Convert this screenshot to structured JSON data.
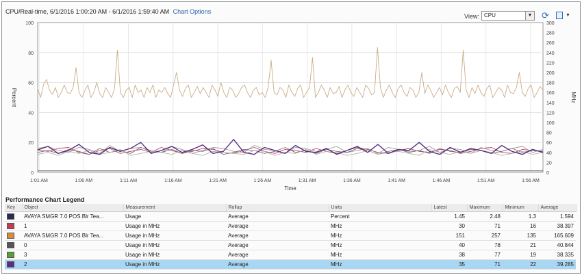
{
  "header": {
    "title": "CPU/Real-time, 6/1/2016 1:00:20 AM - 6/1/2016 1:59:40 AM",
    "chart_options_label": "Chart Options",
    "view_label": "View:",
    "view_selected": "CPU"
  },
  "chart_data": {
    "type": "line",
    "ylabel": "Percent",
    "y2label": "MHz",
    "xlabel": "Time",
    "y_ticks": [
      "0",
      "20",
      "40",
      "60",
      "80",
      "100"
    ],
    "y2_ticks": [
      "0",
      "20",
      "40",
      "60",
      "80",
      "100",
      "120",
      "140",
      "160",
      "180",
      "200",
      "220",
      "240",
      "260",
      "280",
      "300"
    ],
    "x_ticks": [
      "1:01 AM",
      "1:06 AM",
      "1:11 AM",
      "1:16 AM",
      "1:21 AM",
      "1:26 AM",
      "1:31 AM",
      "1:36 AM",
      "1:41 AM",
      "1:46 AM",
      "1:51 AM",
      "1:56 AM"
    ],
    "ylim": [
      0,
      100
    ],
    "y2lim": [
      0,
      300
    ],
    "series": [
      {
        "name": "Usage in MHz (AVAYA SMGR 7.0 POS Blr Tea...)",
        "color": "#c9ac86",
        "values": [
          168,
          150,
          176,
          186,
          165,
          156,
          170,
          150,
          160,
          175,
          160,
          158,
          170,
          210,
          160,
          150,
          164,
          175,
          150,
          160,
          180,
          158,
          150,
          170,
          160,
          150,
          167,
          245,
          160,
          150,
          165,
          170,
          150,
          175,
          160,
          165,
          150,
          170,
          160,
          175,
          150,
          165,
          160,
          170,
          158,
          150,
          175,
          200,
          165,
          152,
          168,
          175,
          150,
          160,
          172,
          158,
          170,
          160,
          150,
          175,
          165,
          152,
          180,
          160,
          150,
          170,
          165,
          150,
          158,
          170,
          175,
          160,
          150,
          165,
          170,
          155,
          160,
          150,
          170,
          225,
          160,
          155,
          170,
          165,
          150,
          175,
          160,
          152,
          168,
          175,
          150,
          160,
          170,
          230,
          150,
          160,
          175,
          165,
          150,
          170,
          158,
          160,
          172,
          150,
          165,
          175,
          160,
          152,
          170,
          160,
          150,
          175,
          168,
          155,
          160,
          250,
          170,
          150,
          165,
          175,
          160,
          150,
          168,
          175,
          160,
          152,
          170,
          165,
          150,
          160,
          200,
          158,
          175,
          165,
          150,
          160,
          170,
          155,
          175,
          160,
          150,
          168,
          172,
          160,
          245,
          165,
          150,
          170,
          158,
          175,
          160,
          152,
          168,
          175,
          150,
          160,
          170,
          165,
          150,
          175,
          160,
          158,
          170,
          200,
          160,
          152,
          168,
          175,
          150,
          160,
          172,
          165
        ]
      },
      {
        "name": "Usage in MHz (1)",
        "color": "#c23a56",
        "values": [
          45,
          42,
          48,
          50,
          40,
          36,
          44,
          48,
          38,
          42,
          46,
          40,
          50,
          44,
          38,
          42,
          48,
          46,
          40,
          38,
          44,
          50,
          42,
          38,
          46,
          44,
          40,
          48,
          42,
          38,
          44,
          50,
          46,
          40,
          38,
          44,
          48,
          42,
          40,
          46,
          44,
          38,
          42,
          48,
          50,
          40,
          38,
          46,
          44,
          42
        ]
      },
      {
        "name": "Usage in MHz (AVAYA SMGR 7.0 POS Blr Tea...)",
        "color": "#9a9a9a",
        "values": [
          48,
          52,
          44,
          40,
          50,
          46,
          38,
          54,
          42,
          48,
          50,
          44,
          40,
          52,
          46,
          38,
          44,
          50,
          48,
          42,
          40,
          54,
          46,
          44,
          38,
          50,
          48,
          42,
          46,
          52,
          40,
          44,
          48,
          38,
          50,
          46,
          42,
          44,
          52,
          40,
          48,
          46,
          38,
          50,
          44,
          42,
          48,
          52,
          40,
          46
        ]
      },
      {
        "name": "Usage in MHz (0)",
        "color": "#707070",
        "values": [
          40,
          44,
          38,
          46,
          42,
          36,
          48,
          40,
          44,
          38,
          50,
          42,
          40,
          46,
          38,
          44,
          42,
          48,
          36,
          40,
          46,
          44,
          38,
          42,
          50,
          40,
          44,
          38,
          46,
          42,
          40,
          48,
          44,
          36,
          42,
          46,
          40,
          44,
          38,
          48,
          42,
          40,
          46,
          44,
          38,
          42,
          48,
          40,
          44,
          42
        ]
      },
      {
        "name": "Usage in MHz (3)",
        "color": "#b0b0b0",
        "values": [
          36,
          40,
          34,
          42,
          38,
          44,
          36,
          40,
          46,
          34,
          38,
          42,
          40,
          36,
          44,
          38,
          34,
          42,
          40,
          38,
          36,
          44,
          42,
          34,
          40,
          38,
          46,
          36,
          42,
          40,
          34,
          38,
          44,
          36,
          40,
          42,
          38,
          34,
          46,
          40,
          36,
          42,
          38,
          44,
          40,
          34,
          38,
          42,
          36,
          40
        ]
      },
      {
        "name": "Usage in MHz (2)",
        "color": "#5a2d82",
        "values": [
          45,
          52,
          38,
          44,
          56,
          40,
          36,
          50,
          42,
          48,
          60,
          38,
          44,
          52,
          40,
          46,
          55,
          38,
          42,
          66,
          40,
          36,
          50,
          44,
          38,
          54,
          42,
          40,
          48,
          36,
          44,
          52,
          40,
          56,
          38,
          46,
          44,
          60,
          42,
          36,
          50,
          40,
          48,
          44,
          38,
          54,
          42,
          36,
          46,
          40
        ]
      },
      {
        "name": "Usage (Percent baseline)",
        "color": "#444444",
        "values": [
          1,
          1,
          1,
          1,
          1,
          1,
          1,
          1,
          1,
          1,
          1,
          1,
          1,
          1,
          1,
          1,
          1,
          1,
          1,
          1,
          1,
          1,
          1,
          1,
          1,
          1,
          1,
          1,
          1,
          1,
          1,
          1,
          1,
          1,
          1,
          1,
          1,
          1,
          1,
          1,
          1,
          1,
          1,
          1,
          1,
          1,
          1,
          1,
          1,
          1
        ]
      }
    ]
  },
  "legend": {
    "title": "Performance Chart Legend",
    "columns": [
      "Key",
      "Object",
      "Measurement",
      "Rollup",
      "Units",
      "Latest",
      "Maximum",
      "Minimum",
      "Average"
    ],
    "rows": [
      {
        "color": "#2a2a55",
        "object": "AVAYA SMGR 7.0 POS Blr Tea...",
        "measurement": "Usage",
        "rollup": "Average",
        "units": "Percent",
        "latest": "1.45",
        "maximum": "2.48",
        "minimum": "1.3",
        "average": "1.594"
      },
      {
        "color": "#c23a56",
        "object": "1",
        "measurement": "Usage in MHz",
        "rollup": "Average",
        "units": "MHz",
        "latest": "30",
        "maximum": "71",
        "minimum": "16",
        "average": "38.397"
      },
      {
        "color": "#d98a3a",
        "object": "AVAYA SMGR 7.0 POS Blr Tea...",
        "measurement": "Usage in MHz",
        "rollup": "Average",
        "units": "MHz",
        "latest": "151",
        "maximum": "257",
        "minimum": "135",
        "average": "165.609"
      },
      {
        "color": "#555555",
        "object": "0",
        "measurement": "Usage in MHz",
        "rollup": "Average",
        "units": "MHz",
        "latest": "40",
        "maximum": "78",
        "minimum": "21",
        "average": "40.844"
      },
      {
        "color": "#5a9e3a",
        "object": "3",
        "measurement": "Usage in MHz",
        "rollup": "Average",
        "units": "MHz",
        "latest": "38",
        "maximum": "77",
        "minimum": "19",
        "average": "38.335"
      },
      {
        "color": "#5a2d82",
        "object": "2",
        "measurement": "Usage in MHz",
        "rollup": "Average",
        "units": "MHz",
        "latest": "35",
        "maximum": "71",
        "minimum": "22",
        "average": "39.285"
      }
    ]
  }
}
